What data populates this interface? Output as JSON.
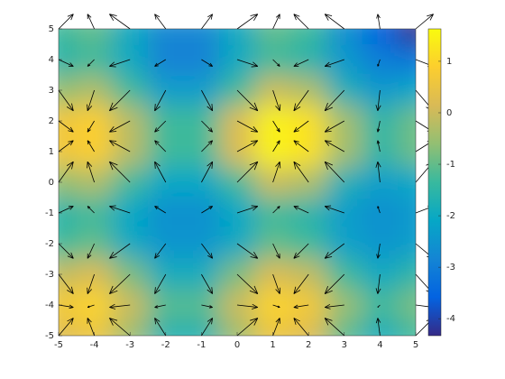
{
  "chart_data": {
    "type": "heatmap",
    "x": [
      -5,
      -4,
      -3,
      -2,
      -1,
      0,
      1,
      2,
      3,
      4,
      5
    ],
    "y": [
      5,
      4,
      3,
      2,
      1,
      0,
      -1,
      -2,
      -3,
      -4,
      -5
    ],
    "z": [
      [
        -1.3,
        -1.0,
        -2.0,
        -2.8,
        -2.8,
        -2.0,
        -1.0,
        -1.3,
        -2.6,
        -3.6,
        -4.4
      ],
      [
        -1.6,
        -1.3,
        -2.0,
        -2.9,
        -2.9,
        -2.0,
        -1.3,
        -1.6,
        -2.4,
        -3.0,
        -3.2
      ],
      [
        -0.6,
        -0.3,
        -1.3,
        -2.3,
        -2.3,
        -1.3,
        0.0,
        -0.3,
        -1.8,
        -2.4,
        -2.1
      ],
      [
        0.6,
        0.9,
        -0.2,
        -1.3,
        -1.3,
        0.2,
        1.5,
        1.2,
        -0.4,
        -1.5,
        -0.9
      ],
      [
        0.6,
        0.9,
        -0.2,
        -1.3,
        -1.3,
        0.2,
        1.5,
        1.2,
        -0.4,
        -1.5,
        -0.9
      ],
      [
        -0.6,
        -0.3,
        -1.3,
        -2.1,
        -2.1,
        -1.3,
        0.0,
        -0.3,
        -1.8,
        -2.3,
        -2.1
      ],
      [
        -1.6,
        -1.3,
        -2.1,
        -2.6,
        -2.6,
        -2.1,
        -1.3,
        -1.6,
        -2.3,
        -2.6,
        -2.4
      ],
      [
        -1.3,
        -1.0,
        -2.0,
        -2.5,
        -2.5,
        -2.0,
        -1.0,
        -1.3,
        -2.2,
        -2.5,
        -2.3
      ],
      [
        -0.1,
        0.2,
        -0.8,
        -1.9,
        -1.9,
        -0.8,
        0.2,
        -0.1,
        -1.3,
        -2.0,
        -1.5
      ],
      [
        0.7,
        1.0,
        0.0,
        -1.1,
        -1.1,
        0.0,
        1.0,
        0.7,
        -0.5,
        -1.3,
        -0.8
      ],
      [
        0.2,
        0.5,
        -0.5,
        -1.7,
        -1.7,
        -0.5,
        0.5,
        0.2,
        -1.1,
        -1.9,
        -1.3
      ]
    ],
    "colormap": [
      "#352a87",
      "#0363e1",
      "#1485d4",
      "#06a7c6",
      "#38b99e",
      "#92bf73",
      "#d9ba56",
      "#fcce2e",
      "#f9fb0e"
    ],
    "clim": [
      -4.33,
      1.63
    ],
    "cticks": [
      1,
      0,
      -1,
      -2,
      -3,
      -4
    ],
    "xlim": [
      -5,
      5
    ],
    "ylim": [
      -5,
      5
    ],
    "xticks": [
      -5,
      -4,
      -3,
      -2,
      -1,
      0,
      1,
      2,
      3,
      4,
      5
    ],
    "yticks": [
      -5,
      -4,
      -3,
      -2,
      -1,
      0,
      1,
      2,
      3,
      4,
      5
    ],
    "quiver": {
      "color": "#000000",
      "u": [
        0.96,
        -0.44,
        -1.34,
        -0.72,
        0.72,
        1.34,
        0.45,
        -0.96,
        -1.27,
        -0.15,
        1.15
      ],
      "v": [
        0.96,
        -0.44,
        -1.34,
        -0.72,
        0.72,
        1.34,
        0.44,
        -0.96,
        -1.27,
        -0.15,
        1.15
      ]
    }
  }
}
